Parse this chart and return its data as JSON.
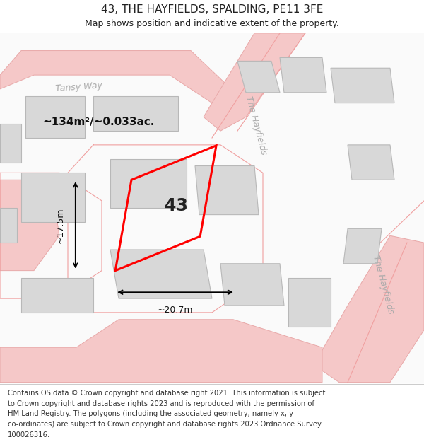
{
  "title": "43, THE HAYFIELDS, SPALDING, PE11 3FE",
  "subtitle": "Map shows position and indicative extent of the property.",
  "footer_lines": [
    "Contains OS data © Crown copyright and database right 2021. This information is subject",
    "to Crown copyright and database rights 2023 and is reproduced with the permission of",
    "HM Land Registry. The polygons (including the associated geometry, namely x, y",
    "co-ordinates) are subject to Crown copyright and database rights 2023 Ordnance Survey",
    "100026316."
  ],
  "map_bg": "#ffffff",
  "area_text": "~134m²/~0.033ac.",
  "width_text": "~20.7m",
  "height_text": "~17.5m",
  "property_number": "43",
  "title_fontsize": 11,
  "subtitle_fontsize": 9,
  "footer_fontsize": 7.2,
  "tansy_way_label": "Tansy Way",
  "hayfields_label1": "The Hayfields",
  "hayfields_label2": "The Hayfields"
}
